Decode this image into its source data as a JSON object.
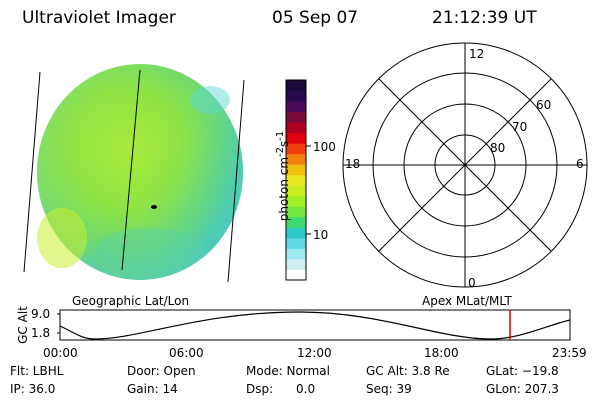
{
  "header": {
    "instrument": "Ultraviolet Imager",
    "date": "05 Sep 07",
    "time": "21:12:39 UT"
  },
  "colorbar": {
    "label_html": "photon cm<sup>-2</sup>s<sup>-1</sup>",
    "ticks": [
      "100",
      "10"
    ],
    "colors": [
      "#1a0a3a",
      "#2a0a4e",
      "#4b0a5a",
      "#7a0a3a",
      "#b00020",
      "#e00010",
      "#f04010",
      "#f08010",
      "#f0c010",
      "#e8e820",
      "#c8f020",
      "#9ef028",
      "#70e840",
      "#40d870",
      "#30c8c8",
      "#60d8e8",
      "#a0e8f0",
      "#d0f0f4",
      "#ffffff"
    ]
  },
  "polar": {
    "mlt_labels": {
      "top": "12",
      "left": "18",
      "right": "6",
      "bottom": "0"
    },
    "lat_labels": [
      "60",
      "70",
      "80"
    ]
  },
  "labels": {
    "geographic": "Geographic Lat/Lon",
    "apex": "Apex MLat/MLT"
  },
  "orbit": {
    "axis_label": "GC Alt",
    "y_max": "9.0",
    "y_min": "1.8",
    "times": [
      "00:00",
      "06:00",
      "12:00",
      "18:00",
      "23:59"
    ],
    "marker_color": "#cc0000"
  },
  "footer": {
    "flt": "Flt: LBHL",
    "ip": "IP: 36.0",
    "door": "Door: Open",
    "gain": "Gain: 14",
    "mode": "Mode: Normal",
    "dsp": "Dsp:      0.0",
    "gcalt": "GC Alt: 3.8 Re",
    "seq": "Seq: 39",
    "glat": "GLat: −19.8",
    "glon": "GLon: 207.3"
  }
}
